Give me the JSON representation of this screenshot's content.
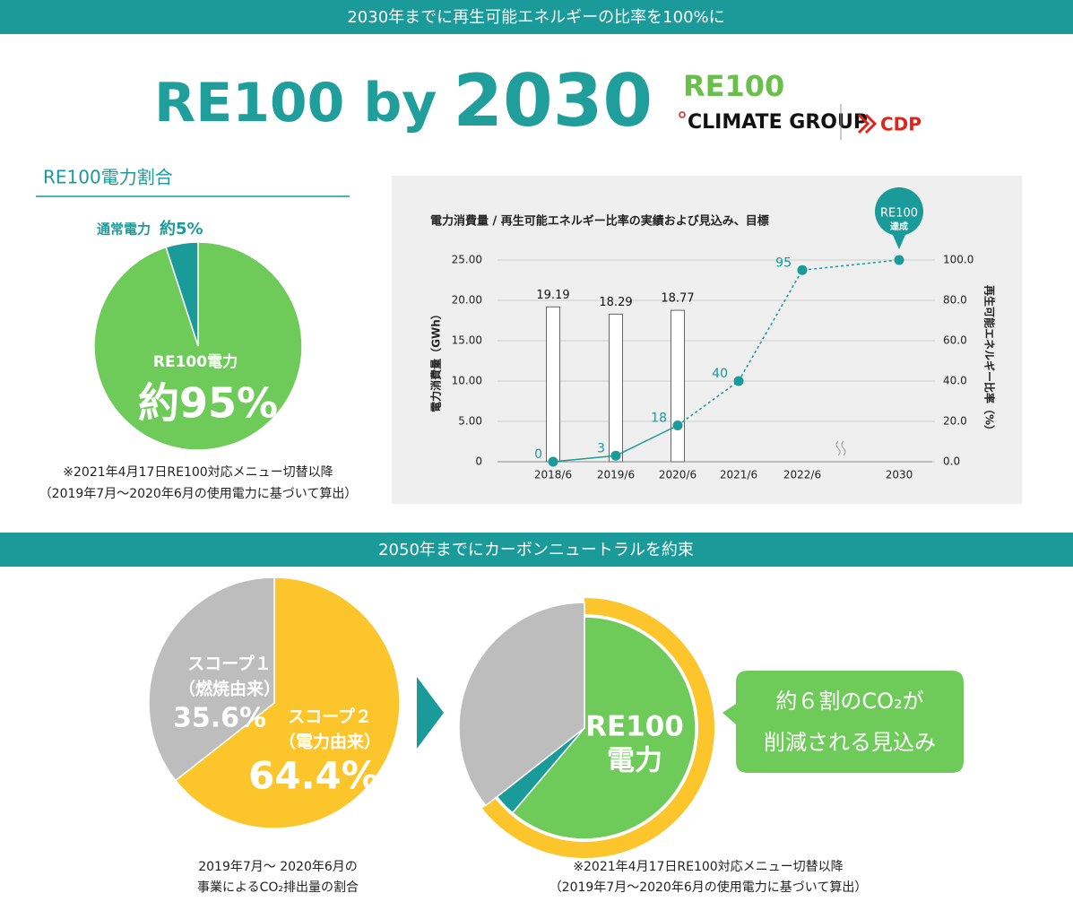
{
  "banner_top": "2030年までに再生可能エネルギーの比率を100%に",
  "title": [
    "RE100 by",
    "2030"
  ],
  "logos": {
    "re100": "RE100",
    "climate_group": "CLIMATE GROUP",
    "cdp": "CDP"
  },
  "section_heading": "RE100電力割合",
  "banner_bottom": "2050年までにカーボンニュートラルを約束",
  "chart_data": [
    {
      "type": "pie",
      "categories": [
        "RE100電力",
        "通常電力"
      ],
      "values": [
        95,
        5
      ],
      "value_labels": [
        "約95%",
        "約5%"
      ],
      "colors": [
        "#6ecb5a",
        "#1a9a98"
      ],
      "notes": [
        "※2021年4月17日RE100対応メニュー切替以降",
        "（2019年7月～2020年6月の使用電力に基づいて算出）"
      ]
    },
    {
      "type": "combo",
      "title": "電力消費量 / 再生可能エネルギー比率の実績および見込み、目標",
      "categories": [
        "2018/6",
        "2019/6",
        "2020/6",
        "2021/6",
        "2022/6",
        "2030"
      ],
      "series": [
        {
          "type": "bar",
          "values": [
            19.19,
            18.29,
            18.77,
            null,
            null,
            null
          ],
          "color": "#ffffff"
        },
        {
          "type": "line",
          "axis": "y2",
          "values": [
            0,
            3,
            18,
            40,
            95,
            100
          ],
          "value_labels": [
            "0",
            "3",
            "18",
            "40",
            "95",
            null
          ],
          "color": "#1a9a98",
          "dash_from": 2
        }
      ],
      "ylabel": "電力消費量（GWh）",
      "y2label": "再生可能エネルギー比率（%）",
      "ylim": [
        0,
        25
      ],
      "yticks": [
        0,
        {
          "value": 5,
          "label": "5.00"
        },
        {
          "value": 10,
          "label": "10.00"
        },
        {
          "value": 15,
          "label": "15.00"
        },
        {
          "value": 20,
          "label": "20.00"
        },
        {
          "value": 25,
          "label": "25.00"
        }
      ],
      "y2lim": [
        0,
        100
      ],
      "y2ticks": [
        {
          "value": 0,
          "label": "0.0"
        },
        {
          "value": 20,
          "label": "20.0"
        },
        {
          "value": 40,
          "label": "40.0"
        },
        {
          "value": 60,
          "label": "60.0"
        },
        {
          "value": 80,
          "label": "80.0"
        },
        {
          "value": 100,
          "label": "100.0"
        }
      ],
      "grid": true,
      "annotation": [
        "RE100",
        "達成"
      ]
    },
    {
      "type": "pie",
      "categories": [
        [
          "スコープ２",
          "（電力由来）"
        ],
        [
          "スコープ１",
          "（燃焼由来）"
        ]
      ],
      "values": [
        64.4,
        35.6
      ],
      "value_labels": [
        "64.4%",
        "35.6%"
      ],
      "colors": [
        "#fcc52c",
        "#bdbdbd"
      ],
      "caption": [
        "2019年7月～ 2020年6月の",
        "事業によるCO₂排出量の割合"
      ]
    },
    {
      "type": "nested_pie",
      "outer": {
        "values": [
          64.4
        ],
        "color": "#fcc52c"
      },
      "inner": {
        "values": [
          61.2,
          3.2,
          35.6
        ],
        "colors": [
          "#6ecb5a",
          "#1a9a98",
          "#bdbdbd"
        ]
      },
      "center_label": [
        "RE100",
        "電力"
      ],
      "callout": [
        "約６割のCO₂が",
        "削減される見込み"
      ],
      "notes": [
        "※2021年4月17日RE100対応メニュー切替以降",
        "（2019年7月～2020年6月の使用電力に基づいて算出）"
      ]
    }
  ]
}
